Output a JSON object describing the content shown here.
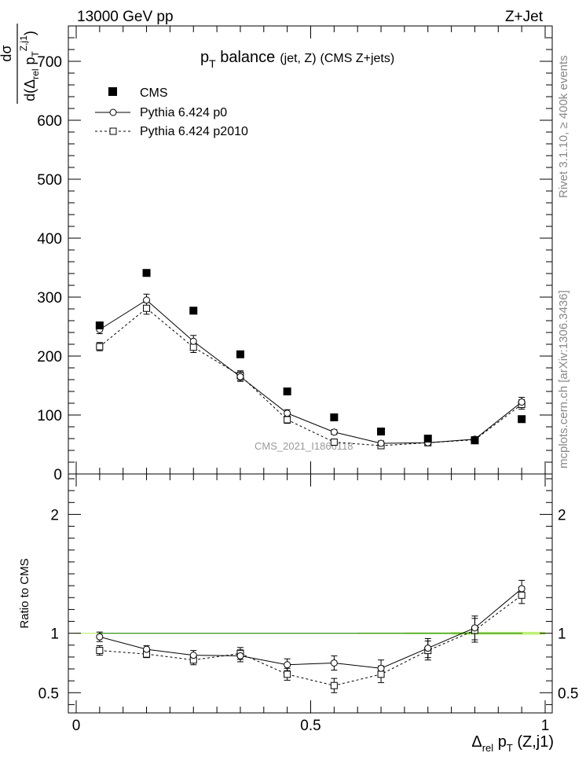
{
  "header": {
    "energy": "13000 GeV pp",
    "process": "Z+Jet"
  },
  "side_labels": {
    "rivet": "Rivet 3.1.10, ≥ 400k events",
    "mcplots": "mcplots.cern.ch [arXiv:1306.3436]"
  },
  "watermark": "CMS_2021_I1866118",
  "chart_data": [
    {
      "type": "scatter",
      "panel": "main",
      "title": "p_T balance (jet, Z) (CMS Z+jets)",
      "title_parts": {
        "p": "p",
        "T": "T",
        "balance": " balance",
        "paren1": "(jet, Z)",
        "paren2": "(CMS Z+jets)"
      },
      "ylabel": "dσ / d(Δ_rel p_T^{Z,j1})",
      "ylabel_parts": {
        "num": "dσ",
        "den_open": "d(Δ",
        "rel": "rel",
        "p": " p",
        "T": "T",
        "zj1": "Z,j1",
        "close": ")"
      },
      "ylim": [
        0,
        760
      ],
      "yticks": [
        0,
        100,
        200,
        300,
        400,
        500,
        600,
        700
      ],
      "ytick_labels": [
        "0",
        "100",
        "200",
        "300",
        "400",
        "500",
        "600",
        "700"
      ],
      "x": [
        0.05,
        0.15,
        0.25,
        0.35,
        0.45,
        0.55,
        0.65,
        0.75,
        0.85,
        0.95
      ],
      "legend": [
        "CMS",
        "Pythia 6.424 p0",
        "Pythia 6.424 p2010"
      ],
      "legend_position": "top-left",
      "series": [
        {
          "name": "CMS",
          "marker": "filled-square",
          "values": [
            252,
            341,
            277,
            203,
            140,
            96,
            72,
            60,
            57,
            93
          ]
        },
        {
          "name": "Pythia 6.424 p0",
          "marker": "open-circle",
          "line": "solid",
          "values": [
            245,
            295,
            225,
            165,
            103,
            71,
            52,
            53,
            59,
            122
          ],
          "errors": [
            7,
            10,
            10,
            8,
            6,
            4,
            4,
            4,
            4,
            8
          ]
        },
        {
          "name": "Pythia 6.424 p2010",
          "marker": "open-square",
          "line": "dashed",
          "values": [
            216,
            281,
            215,
            167,
            92,
            54,
            48,
            53,
            58,
            118
          ],
          "errors": [
            7,
            10,
            9,
            8,
            6,
            4,
            4,
            4,
            4,
            8
          ]
        }
      ]
    },
    {
      "type": "scatter",
      "panel": "ratio",
      "ylabel": "Ratio to CMS",
      "xlabel": "Δ_rel p_T (Z,j1)",
      "xlabel_parts": {
        "delta": "Δ",
        "rel": "rel",
        "p": " p",
        "T": "T",
        "rest": " (Z,j1)"
      },
      "xlim": [
        0,
        1
      ],
      "xticks": [
        0,
        0.5,
        1
      ],
      "xtick_labels": [
        "0",
        "0.5",
        "1"
      ],
      "ylim": [
        0.33,
        2.34
      ],
      "yticks": [
        0.5,
        1,
        2
      ],
      "ytick_labels": [
        "0.5",
        "1",
        "2"
      ],
      "reference_line": 1,
      "x": [
        0.05,
        0.15,
        0.25,
        0.35,
        0.45,
        0.55,
        0.65,
        0.75,
        0.85,
        0.95
      ],
      "cms_uncertainty": [
        0.004,
        0.004,
        0.004,
        0.004,
        0.004,
        0.004,
        0.006,
        0.008,
        0.012,
        0.012
      ],
      "series": [
        {
          "name": "Pythia 6.424 p0",
          "marker": "open-circle",
          "line": "solid",
          "values": [
            0.97,
            0.865,
            0.815,
            0.81,
            0.735,
            0.75,
            0.705,
            0.875,
            1.045,
            1.375
          ],
          "errors": [
            0.04,
            0.03,
            0.04,
            0.05,
            0.05,
            0.06,
            0.07,
            0.08,
            0.1,
            0.07
          ]
        },
        {
          "name": "Pythia 6.424 p2010",
          "marker": "open-square",
          "line": "dashed",
          "values": [
            0.855,
            0.825,
            0.775,
            0.83,
            0.655,
            0.56,
            0.655,
            0.855,
            1.025,
            1.32
          ],
          "errors": [
            0.04,
            0.03,
            0.04,
            0.05,
            0.05,
            0.06,
            0.07,
            0.08,
            0.1,
            0.07
          ]
        }
      ]
    }
  ]
}
